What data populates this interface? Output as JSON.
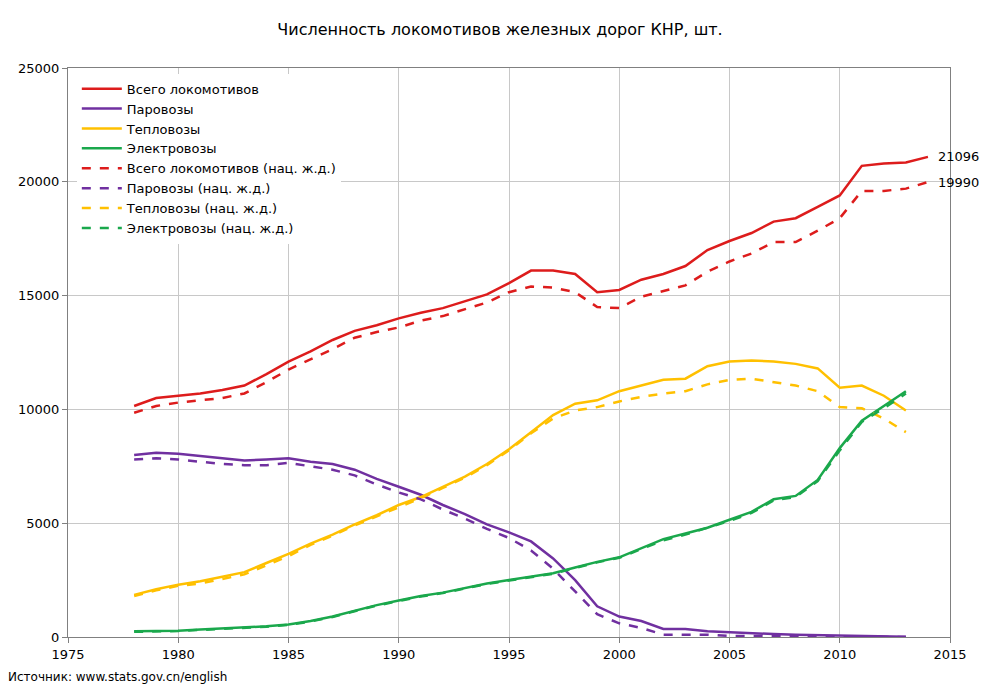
{
  "chart_data": {
    "type": "line",
    "title": "Численность локомотивов железных дорог КНР, шт.",
    "source": "Источник: www.stats.gov.cn/english",
    "x": [
      1978,
      1979,
      1980,
      1981,
      1982,
      1983,
      1984,
      1985,
      1986,
      1987,
      1988,
      1989,
      1990,
      1991,
      1992,
      1993,
      1994,
      1995,
      1996,
      1997,
      1998,
      1999,
      2000,
      2001,
      2002,
      2003,
      2004,
      2005,
      2006,
      2007,
      2008,
      2009,
      2010,
      2011,
      2012,
      2013,
      2014
    ],
    "xlim": [
      1975,
      2015
    ],
    "xticks": [
      1975,
      1980,
      1985,
      1990,
      1995,
      2000,
      2005,
      2010,
      2015
    ],
    "ylim": [
      0,
      25000
    ],
    "yticks": [
      0,
      5000,
      10000,
      15000,
      20000,
      25000
    ],
    "grid": true,
    "legend": "top-left",
    "series": [
      {
        "name": "Всего локомотивов",
        "color": "#dd1c1c",
        "line_style": "solid",
        "values": [
          10150,
          10500,
          10600,
          10700,
          10850,
          11050,
          11550,
          12100,
          12550,
          13050,
          13450,
          13700,
          14000,
          14250,
          14450,
          14750,
          15050,
          15550,
          16100,
          16100,
          15950,
          15150,
          15250,
          15700,
          15950,
          16300,
          17000,
          17400,
          17750,
          18250,
          18400,
          18900,
          19400,
          20700,
          20800,
          20850,
          21096
        ]
      },
      {
        "name": "Паровозы",
        "color": "#7030a0",
        "line_style": "solid",
        "values": [
          8000,
          8100,
          8050,
          7950,
          7850,
          7750,
          7800,
          7850,
          7700,
          7600,
          7350,
          6950,
          6600,
          6250,
          5800,
          5400,
          4950,
          4600,
          4200,
          3450,
          2500,
          1350,
          900,
          700,
          350,
          350,
          250,
          200,
          150,
          130,
          100,
          80,
          60,
          30,
          20,
          10,
          null
        ]
      },
      {
        "name": "Тепловозы",
        "color": "#ffc000",
        "line_style": "solid",
        "values": [
          1850,
          2100,
          2300,
          2450,
          2650,
          2850,
          3250,
          3650,
          4100,
          4500,
          4950,
          5350,
          5800,
          6150,
          6600,
          7050,
          7600,
          8250,
          9000,
          9750,
          10250,
          10400,
          10800,
          11050,
          11300,
          11350,
          11900,
          12100,
          12150,
          12100,
          12000,
          11800,
          10950,
          11050,
          10600,
          9950,
          null
        ]
      },
      {
        "name": "Электровозы",
        "color": "#1aa84c",
        "line_style": "solid",
        "values": [
          250,
          250,
          280,
          330,
          370,
          400,
          470,
          550,
          700,
          900,
          1150,
          1400,
          1600,
          1800,
          1950,
          2150,
          2350,
          2500,
          2650,
          2800,
          3050,
          3300,
          3500,
          3900,
          4300,
          4550,
          4800,
          5150,
          5500,
          6050,
          6200,
          6900,
          8300,
          9500,
          10150,
          10800,
          null
        ]
      },
      {
        "name": "Всего локомотивов (нац. ж.д.)",
        "color": "#dd1c1c",
        "line_style": "dash",
        "values": [
          9850,
          10150,
          10300,
          10400,
          10500,
          10700,
          11200,
          11750,
          12200,
          12650,
          13150,
          13400,
          13600,
          13900,
          14100,
          14400,
          14700,
          15150,
          15400,
          15350,
          15150,
          14500,
          14450,
          14950,
          15200,
          15450,
          16050,
          16500,
          16850,
          17350,
          17350,
          17850,
          18400,
          19600,
          19600,
          19700,
          19990
        ]
      },
      {
        "name": "Паровозы (нац. ж.д.)",
        "color": "#7030a0",
        "line_style": "dash",
        "values": [
          7800,
          7850,
          7800,
          7700,
          7600,
          7550,
          7550,
          7650,
          7500,
          7350,
          7100,
          6700,
          6350,
          6050,
          5600,
          5200,
          4750,
          4350,
          3800,
          3000,
          2000,
          1000,
          600,
          400,
          100,
          100,
          100,
          50,
          40,
          30,
          20,
          10,
          10,
          0,
          0,
          0,
          null
        ]
      },
      {
        "name": "Тепловозы (нац. ж.д.)",
        "color": "#ffc000",
        "line_style": "dash",
        "values": [
          1800,
          2050,
          2250,
          2350,
          2550,
          2750,
          3150,
          3550,
          4050,
          4450,
          4900,
          5300,
          5700,
          6100,
          6550,
          7000,
          7550,
          8200,
          8950,
          9600,
          9950,
          10100,
          10350,
          10550,
          10700,
          10800,
          11100,
          11300,
          11350,
          11200,
          11050,
          10800,
          10100,
          10050,
          9600,
          9000,
          null
        ]
      },
      {
        "name": "Электровозы (нац. ж.д.)",
        "color": "#1aa84c",
        "line_style": "dash",
        "values": [
          230,
          230,
          260,
          310,
          350,
          380,
          450,
          530,
          680,
          880,
          1130,
          1380,
          1580,
          1780,
          1930,
          2130,
          2330,
          2480,
          2630,
          2780,
          3030,
          3280,
          3480,
          3870,
          4250,
          4500,
          4800,
          5100,
          5450,
          6000,
          6150,
          6850,
          8200,
          9450,
          10050,
          10700,
          null
        ]
      }
    ],
    "annotations": [
      {
        "x": 2014,
        "y": 21096,
        "text": "21096"
      },
      {
        "x": 2014,
        "y": 19990,
        "text": "19990"
      }
    ]
  }
}
